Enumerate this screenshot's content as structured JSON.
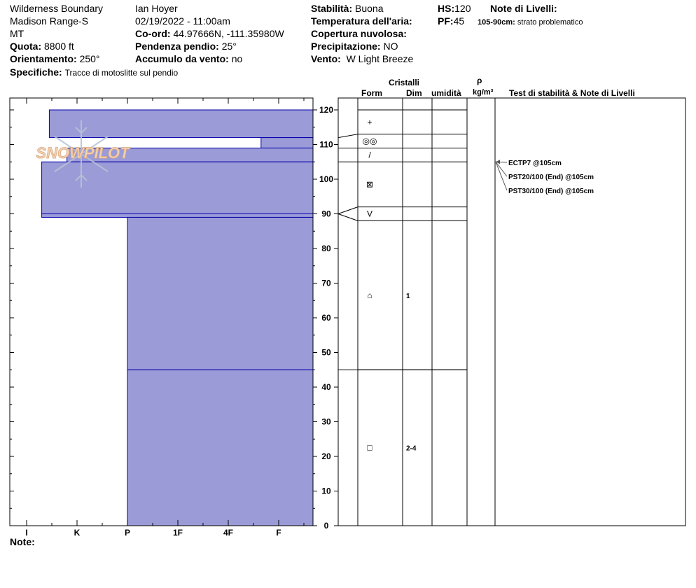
{
  "header": {
    "location": "Wilderness Boundary",
    "range": "Madison Range-S",
    "state": "MT",
    "quota_label": "Quota:",
    "quota_value": "8800 ft",
    "orient_label": "Orientamento:",
    "orient_value": "250°",
    "spec_label": "Specifiche:",
    "spec_value": "Tracce di motoslitte sul pendio",
    "observer": "Ian Hoyer",
    "datetime": "02/19/2022 - 11:00am",
    "coord_label": "Co-ord:",
    "coord_value": "44.97666N, -111.35980W",
    "slope_label": "Pendenza pendio:",
    "slope_value": "25°",
    "wind_load_label": "Accumulo da vento:",
    "wind_load_value": "no",
    "stability_label": "Stabilità:",
    "stability_value": "Buona",
    "air_temp_label": "Temperatura dell'aria:",
    "cloud_label": "Copertura nuvolosa:",
    "precip_label": "Precipitazione:",
    "precip_value": "NO",
    "wind_label": "Vento:",
    "wind_value": "W Light Breeze",
    "hs_label": "HS:",
    "hs_value": "120",
    "pf_label": "PF:",
    "pf_value": "45",
    "layer_notes_label": "Note di Livelli:",
    "layer_note_depth": "105-90cm:",
    "layer_note_text": "strato problematico"
  },
  "columns": {
    "crystals": "Cristalli",
    "form": "Form",
    "dim": "Dim",
    "humidity": "umidità",
    "rho": "ρ",
    "density_unit": "kg/m³",
    "tests": "Test di stabilità & Note di Livelli"
  },
  "footer": {
    "notes_label": "Note:"
  },
  "logo_text": "SNOWPILOT",
  "colors": {
    "layer_fill": "#9b9bd8",
    "layer_stroke": "#0000aa",
    "arrow": "#555555"
  },
  "chart_data": {
    "type": "bar",
    "orientation": "horizontal",
    "y_axis_label": "",
    "ylim": [
      0,
      120
    ],
    "y_ticks": [
      0,
      10,
      20,
      30,
      40,
      50,
      60,
      70,
      80,
      90,
      100,
      110,
      120
    ],
    "hardness_scale": [
      "I",
      "K",
      "P",
      "1F",
      "4F",
      "F"
    ],
    "layers": [
      {
        "top": 120,
        "bottom": 112,
        "hardness_index": 0.45
      },
      {
        "top": 112,
        "bottom": 109,
        "hardness_index": 4.65
      },
      {
        "top": 109,
        "bottom": 105,
        "hardness_index": 0.8
      },
      {
        "top": 105,
        "bottom": 90,
        "hardness_index": 0.3
      },
      {
        "top": 90,
        "bottom": 89,
        "hardness_index": 0.3
      },
      {
        "top": 89,
        "bottom": 45,
        "hardness_index": 2.0
      },
      {
        "top": 45,
        "bottom": 0,
        "hardness_index": 2.0
      }
    ],
    "crystal_rows": [
      {
        "top": 120,
        "bottom": 113,
        "form": "+",
        "dim": ""
      },
      {
        "top": 113,
        "bottom": 109,
        "form": "◎◎",
        "dim": ""
      },
      {
        "top": 109,
        "bottom": 105,
        "form": "/",
        "dim": ""
      },
      {
        "top": 105,
        "bottom": 92,
        "form": "⊠",
        "dim": ""
      },
      {
        "top": 92,
        "bottom": 88,
        "form": "V",
        "dim": ""
      },
      {
        "top": 88,
        "bottom": 45,
        "form": "⌂",
        "dim": "1"
      },
      {
        "top": 45,
        "bottom": 0,
        "form": "□",
        "dim": "2-4"
      }
    ],
    "stability_tests": [
      {
        "label": "ECTP7 @105cm",
        "depth": 105
      },
      {
        "label": "PST20/100 (End) @105cm",
        "depth": 105
      },
      {
        "label": "PST30/100 (End) @105cm",
        "depth": 105
      }
    ]
  }
}
